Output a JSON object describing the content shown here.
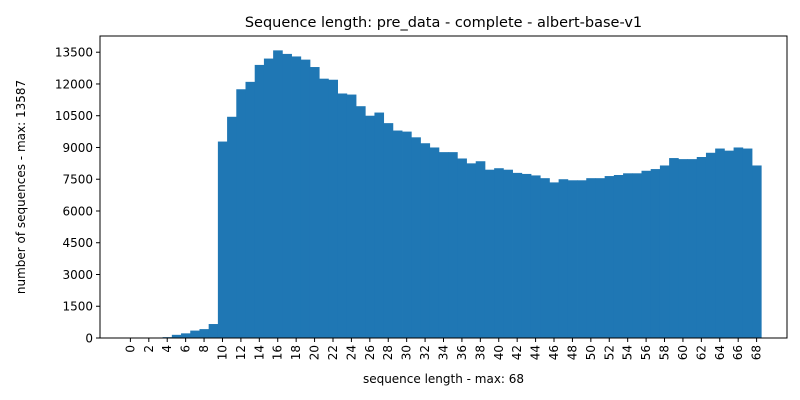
{
  "chart_data": {
    "type": "bar",
    "title": "Sequence length: pre_data - complete - albert-base-v1",
    "xlabel": "sequence length - max: 68",
    "ylabel": "number of sequences - max: 13587",
    "x": [
      0,
      1,
      2,
      3,
      4,
      5,
      6,
      7,
      8,
      9,
      10,
      11,
      12,
      13,
      14,
      15,
      16,
      17,
      18,
      19,
      20,
      21,
      22,
      23,
      24,
      25,
      26,
      27,
      28,
      29,
      30,
      31,
      32,
      33,
      34,
      35,
      36,
      37,
      38,
      39,
      40,
      41,
      42,
      43,
      44,
      45,
      46,
      47,
      48,
      49,
      50,
      51,
      52,
      53,
      54,
      55,
      56,
      57,
      58,
      59,
      60,
      61,
      62,
      63,
      64,
      65,
      66,
      67,
      68
    ],
    "values": [
      0,
      0,
      0,
      0,
      40,
      150,
      220,
      350,
      420,
      660,
      9280,
      10450,
      11750,
      12100,
      12900,
      13200,
      13587,
      13420,
      13300,
      13150,
      12800,
      12250,
      12200,
      11550,
      11500,
      10950,
      10500,
      10650,
      10150,
      9800,
      9750,
      9480,
      9200,
      9000,
      8780,
      8780,
      8480,
      8250,
      8350,
      7950,
      8020,
      7950,
      7800,
      7750,
      7680,
      7550,
      7350,
      7500,
      7450,
      7450,
      7550,
      7550,
      7650,
      7700,
      7780,
      7780,
      7900,
      7980,
      8150,
      8500,
      8450,
      8450,
      8550,
      8750,
      8950,
      8850,
      9000,
      8950,
      8150
    ],
    "xticks": [
      0,
      2,
      4,
      6,
      8,
      10,
      12,
      14,
      16,
      18,
      20,
      22,
      24,
      26,
      28,
      30,
      32,
      34,
      36,
      38,
      40,
      42,
      44,
      46,
      48,
      50,
      52,
      54,
      56,
      58,
      60,
      62,
      64,
      66,
      68
    ],
    "yticks": [
      0,
      1500,
      3000,
      4500,
      6000,
      7500,
      9000,
      10500,
      12000,
      13500
    ],
    "xlim": [
      -3.3,
      71.3
    ],
    "ylim": [
      0,
      14266
    ],
    "colors": {
      "bar": "#1f77b4",
      "axis": "#000000"
    },
    "grid": false,
    "legend": "none"
  }
}
